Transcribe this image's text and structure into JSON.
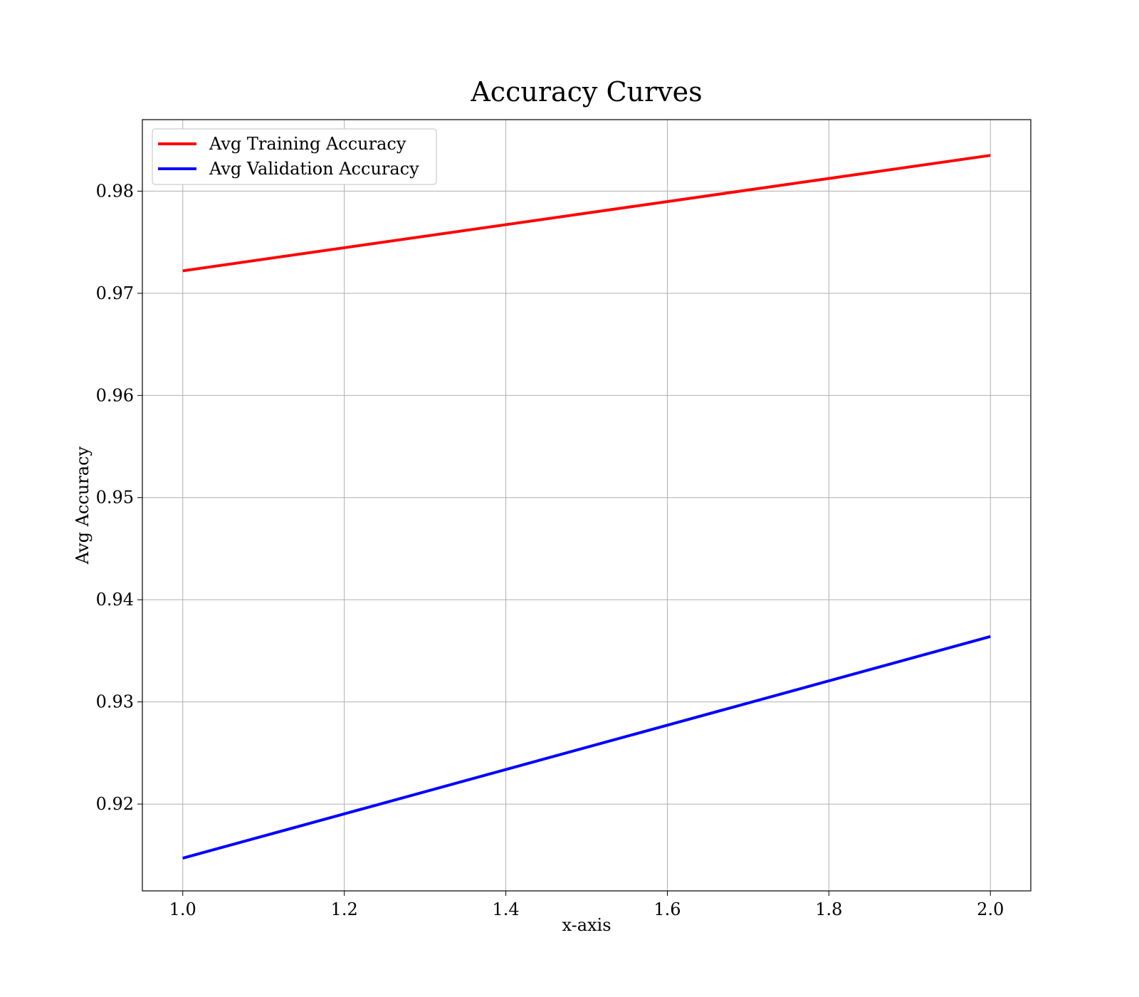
{
  "chart_data": {
    "type": "line",
    "title": "Accuracy Curves",
    "xlabel": "x-axis",
    "ylabel": "Avg Accuracy",
    "x": [
      1.0,
      2.0
    ],
    "xlim": [
      0.95,
      2.05
    ],
    "ylim": [
      0.9115,
      0.987
    ],
    "xticks": [
      "1.0",
      "1.2",
      "1.4",
      "1.6",
      "1.8",
      "2.0"
    ],
    "yticks": [
      "0.92",
      "0.93",
      "0.94",
      "0.95",
      "0.96",
      "0.97",
      "0.98"
    ],
    "grid": true,
    "legend_position": "upper-left",
    "series": [
      {
        "name": "Avg Training Accuracy",
        "color": "#ff0000",
        "values": [
          0.9722,
          0.9835
        ]
      },
      {
        "name": "Avg Validation Accuracy",
        "color": "#0000ff",
        "values": [
          0.9147,
          0.9364
        ]
      }
    ]
  }
}
